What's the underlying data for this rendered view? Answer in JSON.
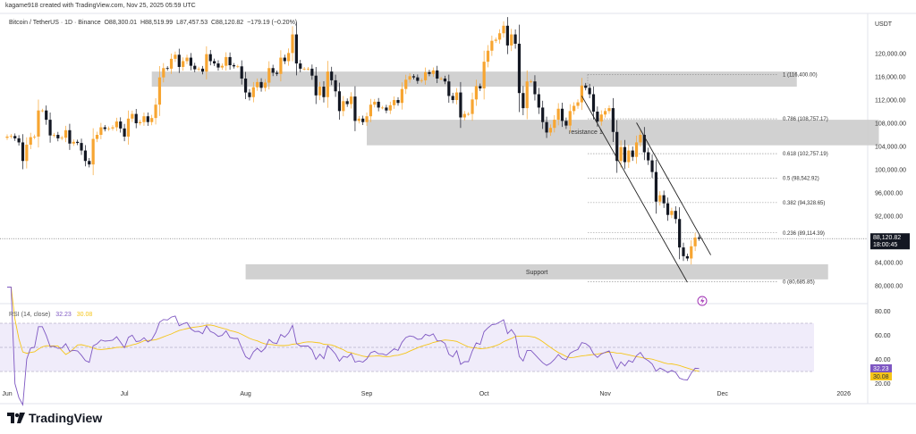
{
  "header": {
    "credit": "kagame918 created with TradingView.com, Nov 25, 2025 05:59 UTC",
    "symbol": "Bitcoin / TetherUS · 1D · Binance",
    "open": "O88,300.01",
    "high": "H88,519.99",
    "low": "L87,457.53",
    "close": "C88,120.82",
    "change": "−179.19 (−0.20%)"
  },
  "currency": "USDT",
  "last_price_label": "88,120.82",
  "countdown": "18:00:45",
  "rsi": {
    "title": "RSI (14, close)",
    "value": "32.23",
    "ma_value": "30.08",
    "axis": [
      "80.00",
      "60.00",
      "40.00",
      "20.00"
    ]
  },
  "footer": {
    "brand": "TradingView"
  },
  "colors": {
    "up": "#f7a531",
    "down": "#131722",
    "rsi": "#7e57c2",
    "rsi_ma": "#f5c518",
    "zone": "#cfcfcf",
    "rsi_band": "#f0ecfa"
  },
  "chart_data": {
    "type": "candlestick",
    "title": "Bitcoin / TetherUS · 1D · Binance",
    "start_date": "2025-06-01",
    "end_date": "2025-11-25",
    "close_thousands_usdt": [
      105.7,
      105.8,
      105.4,
      104.7,
      101.5,
      104.3,
      105.6,
      105.7,
      110.2,
      110.2,
      108.6,
      105.9,
      106.0,
      105.4,
      105.5,
      106.8,
      104.5,
      104.8,
      104.6,
      103.3,
      101.5,
      100.9,
      105.3,
      106.0,
      107.3,
      107.0,
      107.1,
      107.3,
      108.3,
      107.1,
      105.7,
      108.8,
      109.6,
      108.0,
      108.2,
      109.2,
      108.2,
      108.9,
      111.2,
      115.9,
      117.5,
      117.4,
      119.1,
      119.8,
      117.7,
      118.7,
      119.3,
      117.9,
      117.3,
      117.4,
      116.9,
      119.9,
      118.7,
      118.3,
      117.6,
      117.9,
      119.4,
      118.0,
      117.8,
      117.8,
      115.7,
      113.3,
      112.5,
      114.2,
      115.1,
      114.1,
      115.0,
      117.5,
      116.7,
      116.5,
      119.3,
      118.7,
      120.1,
      123.3,
      118.3,
      117.4,
      117.4,
      117.4,
      116.2,
      112.8,
      114.3,
      112.5,
      116.9,
      115.4,
      113.5,
      110.1,
      111.8,
      111.3,
      112.6,
      108.4,
      108.8,
      108.2,
      109.2,
      111.2,
      111.7,
      110.7,
      110.7,
      110.2,
      111.1,
      112.0,
      111.5,
      113.9,
      115.5,
      116.1,
      115.9,
      115.3,
      115.4,
      116.8,
      116.5,
      117.1,
      115.7,
      115.7,
      115.2,
      112.7,
      112.0,
      113.3,
      109.0,
      109.6,
      109.6,
      112.1,
      114.4,
      114.0,
      118.6,
      120.5,
      122.2,
      122.4,
      123.5,
      124.8,
      121.4,
      123.3,
      121.7,
      113.2,
      110.6,
      115.2,
      115.2,
      113.0,
      110.7,
      108.2,
      106.4,
      107.2,
      108.6,
      110.5,
      108.4,
      107.6,
      110.1,
      111.0,
      111.6,
      114.5,
      114.1,
      113.0,
      110.0,
      108.3,
      109.5,
      110.1,
      110.6,
      106.5,
      101.5,
      103.9,
      101.3,
      103.3,
      102.2,
      104.7,
      106.0,
      103.0,
      101.6,
      99.6,
      94.5,
      95.6,
      94.2,
      92.2,
      92.9,
      91.5,
      86.6,
      85.1,
      84.7,
      86.8,
      88.3,
      88.12
    ],
    "y_axis": {
      "ticks": [
        "120,000.00",
        "116,000.00",
        "112,000.00",
        "108,000.00",
        "104,000.00",
        "100,000.00",
        "96,000.00",
        "92,000.00",
        "88,000.00",
        "84,000.00",
        "80,000.00"
      ],
      "range": [
        78000,
        125000
      ]
    },
    "x_axis": {
      "ticks": [
        "Jun",
        "Jul",
        "Aug",
        "Sep",
        "Oct",
        "Nov",
        "Dec",
        "2026"
      ]
    },
    "zones": [
      {
        "label": "",
        "top": 116900,
        "bottom": 114300,
        "from": "2025-07-08",
        "to": "2025-12-20"
      },
      {
        "label": "resistance 1",
        "top": 108600,
        "bottom": 104200,
        "from": "2025-09-01",
        "to": "2026-01-10"
      },
      {
        "label": "Support",
        "top": 83700,
        "bottom": 81100,
        "from": "2025-08-01",
        "to": "2025-12-28"
      }
    ],
    "fibonacci": [
      {
        "label": "1 (116,400.00)",
        "price": 116400
      },
      {
        "label": "0.786 (108,757.17)",
        "price": 108757.17
      },
      {
        "label": "0.618 (102,757.19)",
        "price": 102757.19
      },
      {
        "label": "0.5 (98,542.92)",
        "price": 98542.92
      },
      {
        "label": "0.382 (94,328.65)",
        "price": 94328.65
      },
      {
        "label": "0.236 (89,114.39)",
        "price": 89114.39
      },
      {
        "label": "0 (80,685.85)",
        "price": 80685.85
      }
    ],
    "channel": [
      {
        "from": {
          "date": "2025-10-26",
          "price": 112700
        },
        "to": {
          "date": "2025-11-22",
          "price": 80600
        }
      },
      {
        "from": {
          "date": "2025-11-09",
          "price": 108100
        },
        "to": {
          "date": "2025-11-28",
          "price": 85300
        }
      }
    ]
  }
}
